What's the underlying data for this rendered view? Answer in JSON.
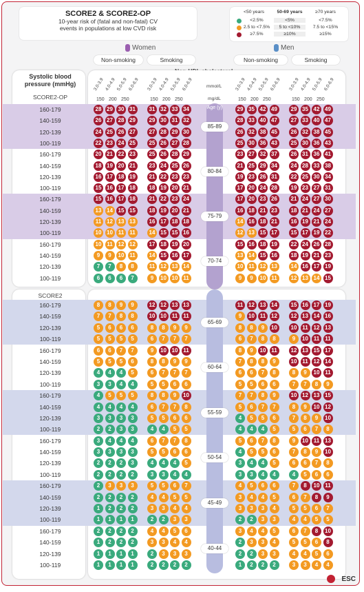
{
  "title": "SCORE2 & SCORE2-OP",
  "subtitle_line1": "10-year risk of (fatal and non-fatal) CV",
  "subtitle_line2": "events in populations at low CVD risk",
  "legend": {
    "headers": [
      "<50 years",
      "50-69 years",
      "≥70 years"
    ],
    "rows": [
      [
        "<2.5%",
        "<5%",
        "<7.5%"
      ],
      [
        "2.5 to <7.5%",
        "5 to <10%",
        "7.5 to <15%"
      ],
      [
        "≥7.5%",
        "≥10%",
        "≥15%"
      ]
    ],
    "colors": {
      "green": "#3aaa7d",
      "orange": "#f39a22",
      "red": "#a31a30"
    }
  },
  "women_label": "Women",
  "men_label": "Men",
  "nonsmoking": "Non-smoking",
  "smoking": "Smoking",
  "nonhdl": "Non-HDL cholesterol",
  "sbp_label": "Systolic blood pressure (mmHg)",
  "op_label": "SCORE2-OP",
  "score2_label": "SCORE2",
  "mmol": "mmol/L",
  "mgdl": "mg/dL",
  "age_header": "Age (y)",
  "col_headers": [
    "3.0-3.9",
    "4.0-4.9",
    "5.0-5.9",
    "6.0-6.9"
  ],
  "mg_values": [
    "150",
    "200",
    "250"
  ],
  "sbp_rows": [
    "160-179",
    "140-159",
    "120-139",
    "100-119"
  ],
  "esc": "ESC",
  "ages": [
    {
      "age": "85-89",
      "women_ns": [
        [
          28,
          29,
          30,
          31
        ],
        [
          26,
          27,
          28,
          29
        ],
        [
          24,
          25,
          26,
          27
        ],
        [
          22,
          23,
          24,
          25
        ]
      ],
      "women_s": [
        [
          31,
          32,
          33,
          34
        ],
        [
          29,
          30,
          31,
          32
        ],
        [
          27,
          28,
          29,
          30
        ],
        [
          25,
          26,
          27,
          28
        ]
      ],
      "men_ns": [
        [
          29,
          35,
          42,
          49
        ],
        [
          28,
          33,
          40,
          47
        ],
        [
          26,
          32,
          38,
          45
        ],
        [
          25,
          30,
          36,
          43
        ]
      ],
      "men_s": [
        [
          29,
          35,
          42,
          49
        ],
        [
          27,
          33,
          40,
          47
        ],
        [
          26,
          32,
          38,
          45
        ],
        [
          25,
          30,
          36,
          43
        ]
      ]
    },
    {
      "age": "80-84",
      "women_ns": [
        [
          20,
          21,
          22,
          23
        ],
        [
          18,
          19,
          20,
          21
        ],
        [
          16,
          17,
          18,
          19
        ],
        [
          15,
          16,
          17,
          18
        ]
      ],
      "women_s": [
        [
          25,
          26,
          28,
          29
        ],
        [
          23,
          24,
          25,
          26
        ],
        [
          21,
          22,
          23,
          23
        ],
        [
          18,
          19,
          20,
          21
        ]
      ],
      "men_ns": [
        [
          23,
          27,
          32,
          37
        ],
        [
          21,
          25,
          29,
          34
        ],
        [
          19,
          23,
          26,
          31
        ],
        [
          17,
          20,
          24,
          28
        ]
      ],
      "men_s": [
        [
          26,
          31,
          36,
          41
        ],
        [
          24,
          28,
          33,
          38
        ],
        [
          22,
          25,
          30,
          34
        ],
        [
          19,
          23,
          27,
          31
        ]
      ]
    },
    {
      "age": "75-79",
      "women_ns": [
        [
          15,
          16,
          17,
          18
        ],
        [
          13,
          14,
          15,
          15
        ],
        [
          11,
          12,
          13,
          13
        ],
        [
          10,
          10,
          11,
          11
        ]
      ],
      "women_s": [
        [
          21,
          22,
          23,
          24
        ],
        [
          18,
          19,
          20,
          21
        ],
        [
          16,
          17,
          18,
          18
        ],
        [
          14,
          15,
          15,
          16
        ]
      ],
      "men_ns": [
        [
          17,
          20,
          23,
          26
        ],
        [
          16,
          18,
          21,
          23
        ],
        [
          14,
          16,
          18,
          21
        ],
        [
          12,
          13,
          15,
          17
        ]
      ],
      "men_s": [
        [
          21,
          24,
          27,
          30
        ],
        [
          18,
          21,
          24,
          27
        ],
        [
          16,
          19,
          21,
          24
        ],
        [
          15,
          17,
          19,
          22
        ]
      ]
    },
    {
      "age": "70-74",
      "women_ns": [
        [
          10,
          11,
          12,
          12
        ],
        [
          9,
          9,
          10,
          11
        ],
        [
          7,
          7,
          8,
          8
        ],
        [
          6,
          6,
          6,
          7
        ]
      ],
      "women_s": [
        [
          17,
          18,
          19,
          20
        ],
        [
          14,
          15,
          16,
          17
        ],
        [
          11,
          12,
          13,
          14
        ],
        [
          9,
          10,
          10,
          11
        ]
      ],
      "men_ns": [
        [
          15,
          16,
          18,
          19
        ],
        [
          13,
          14,
          15,
          16
        ],
        [
          10,
          11,
          12,
          13
        ],
        [
          9,
          9,
          10,
          11
        ]
      ],
      "men_s": [
        [
          22,
          24,
          26,
          28
        ],
        [
          18,
          19,
          21,
          23
        ],
        [
          14,
          16,
          17,
          19
        ],
        [
          12,
          13,
          14,
          15
        ]
      ]
    },
    {
      "age": "65-69",
      "women_ns": [
        [
          8,
          8,
          9,
          9
        ],
        [
          7,
          7,
          8,
          8
        ],
        [
          5,
          6,
          6,
          6
        ],
        [
          5,
          5,
          5,
          5
        ]
      ],
      "women_s": [
        [
          12,
          12,
          13,
          13
        ],
        [
          10,
          10,
          11,
          11
        ],
        [
          8,
          8,
          9,
          9
        ],
        [
          6,
          7,
          7,
          7
        ]
      ],
      "men_ns": [
        [
          11,
          12,
          13,
          14
        ],
        [
          9,
          10,
          11,
          12
        ],
        [
          8,
          8,
          9,
          10
        ],
        [
          6,
          7,
          8,
          8
        ]
      ],
      "men_s": [
        [
          15,
          16,
          17,
          19
        ],
        [
          12,
          13,
          14,
          16
        ],
        [
          10,
          11,
          12,
          13
        ],
        [
          9,
          10,
          11,
          11
        ]
      ]
    },
    {
      "age": "60-64",
      "women_ns": [
        [
          6,
          6,
          7,
          7
        ],
        [
          5,
          5,
          5,
          6
        ],
        [
          4,
          4,
          4,
          5
        ],
        [
          3,
          3,
          4,
          4
        ]
      ],
      "women_s": [
        [
          9,
          10,
          10,
          11
        ],
        [
          8,
          8,
          9,
          9
        ],
        [
          6,
          7,
          7,
          7
        ],
        [
          5,
          5,
          6,
          6
        ]
      ],
      "men_ns": [
        [
          8,
          9,
          10,
          11
        ],
        [
          7,
          8,
          8,
          9
        ],
        [
          6,
          6,
          7,
          8
        ],
        [
          5,
          5,
          6,
          6
        ]
      ],
      "men_s": [
        [
          12,
          13,
          15,
          17
        ],
        [
          10,
          11,
          12,
          14
        ],
        [
          8,
          9,
          10,
          11
        ],
        [
          7,
          7,
          8,
          9
        ]
      ]
    },
    {
      "age": "55-59",
      "women_ns": [
        [
          4,
          5,
          5,
          5
        ],
        [
          4,
          4,
          4,
          4
        ],
        [
          3,
          3,
          3,
          3
        ],
        [
          2,
          2,
          3,
          3
        ]
      ],
      "women_s": [
        [
          8,
          8,
          9,
          10
        ],
        [
          6,
          7,
          7,
          8
        ],
        [
          5,
          5,
          6,
          6
        ],
        [
          4,
          4,
          5,
          5
        ]
      ],
      "men_ns": [
        [
          7,
          7,
          8,
          9
        ],
        [
          5,
          6,
          7,
          7
        ],
        [
          4,
          5,
          5,
          6
        ],
        [
          4,
          4,
          4,
          5
        ]
      ],
      "men_s": [
        [
          10,
          12,
          13,
          15
        ],
        [
          8,
          9,
          10,
          12
        ],
        [
          7,
          8,
          9,
          10
        ],
        [
          5,
          6,
          7,
          8
        ]
      ]
    },
    {
      "age": "50-54",
      "women_ns": [
        [
          3,
          4,
          4,
          4
        ],
        [
          3,
          3,
          3,
          3
        ],
        [
          2,
          2,
          2,
          3
        ],
        [
          2,
          2,
          2,
          2
        ]
      ],
      "women_s": [
        [
          6,
          7,
          7,
          8
        ],
        [
          5,
          5,
          6,
          6
        ],
        [
          4,
          4,
          4,
          5
        ],
        [
          3,
          3,
          4,
          4
        ]
      ],
      "men_ns": [
        [
          5,
          6,
          7,
          8
        ],
        [
          4,
          5,
          5,
          6
        ],
        [
          3,
          4,
          4,
          5
        ],
        [
          3,
          3,
          4,
          4
        ]
      ],
      "men_s": [
        [
          9,
          10,
          11,
          13
        ],
        [
          7,
          8,
          9,
          10
        ],
        [
          6,
          6,
          7,
          8
        ],
        [
          4,
          5,
          6,
          6
        ]
      ]
    },
    {
      "age": "45-49",
      "women_ns": [
        [
          2,
          3,
          3,
          3
        ],
        [
          2,
          2,
          2,
          2
        ],
        [
          1,
          2,
          2,
          2
        ],
        [
          1,
          1,
          1,
          1
        ]
      ],
      "women_s": [
        [
          5,
          5,
          6,
          7
        ],
        [
          4,
          4,
          5,
          5
        ],
        [
          3,
          3,
          4,
          4
        ],
        [
          2,
          2,
          3,
          3
        ]
      ],
      "men_ns": [
        [
          4,
          5,
          6,
          6
        ],
        [
          3,
          4,
          4,
          5
        ],
        [
          3,
          3,
          3,
          4
        ],
        [
          2,
          2,
          3,
          3
        ]
      ],
      "men_s": [
        [
          7,
          8,
          10,
          11
        ],
        [
          6,
          7,
          8,
          9
        ],
        [
          5,
          5,
          6,
          7
        ],
        [
          4,
          4,
          5,
          5
        ]
      ]
    },
    {
      "age": "40-44",
      "women_ns": [
        [
          2,
          2,
          2,
          2
        ],
        [
          1,
          2,
          2,
          2
        ],
        [
          1,
          1,
          1,
          1
        ],
        [
          1,
          1,
          1,
          1
        ]
      ],
      "women_s": [
        [
          4,
          4,
          5,
          6
        ],
        [
          3,
          3,
          4,
          4
        ],
        [
          2,
          3,
          3,
          3
        ],
        [
          2,
          2,
          2,
          2
        ]
      ],
      "men_ns": [
        [
          3,
          4,
          4,
          5
        ],
        [
          2,
          3,
          3,
          4
        ],
        [
          2,
          2,
          3,
          3
        ],
        [
          1,
          2,
          2,
          2
        ]
      ],
      "men_s": [
        [
          6,
          7,
          8,
          10
        ],
        [
          5,
          5,
          6,
          8
        ],
        [
          4,
          4,
          5,
          6
        ],
        [
          3,
          3,
          4,
          4
        ]
      ]
    }
  ]
}
